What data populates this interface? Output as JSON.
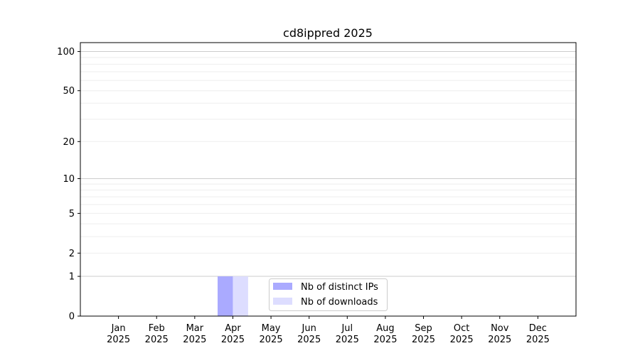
{
  "chart_data": {
    "type": "bar",
    "title": "cd8ippred 2025",
    "xlabel": "",
    "ylabel": "",
    "yscale": "symlog",
    "ylim": [
      0,
      117
    ],
    "yticks": [
      0,
      1,
      2,
      5,
      10,
      20,
      50,
      100
    ],
    "grid": true,
    "legend_placement": "lower-center",
    "categories": [
      "Jan\n2025",
      "Feb\n2025",
      "Mar\n2025",
      "Apr\n2025",
      "May\n2025",
      "Jun\n2025",
      "Jul\n2025",
      "Aug\n2025",
      "Sep\n2025",
      "Oct\n2025",
      "Nov\n2025",
      "Dec\n2025"
    ],
    "series": [
      {
        "name": "Nb of distinct IPs",
        "color": "#aaaaff",
        "values": [
          0,
          0,
          0,
          1,
          0,
          0,
          0,
          0,
          0,
          0,
          0,
          0
        ]
      },
      {
        "name": "Nb of downloads",
        "color": "#ddddff",
        "values": [
          0,
          0,
          0,
          1,
          0,
          0,
          0,
          0,
          0,
          0,
          0,
          0
        ]
      }
    ]
  }
}
